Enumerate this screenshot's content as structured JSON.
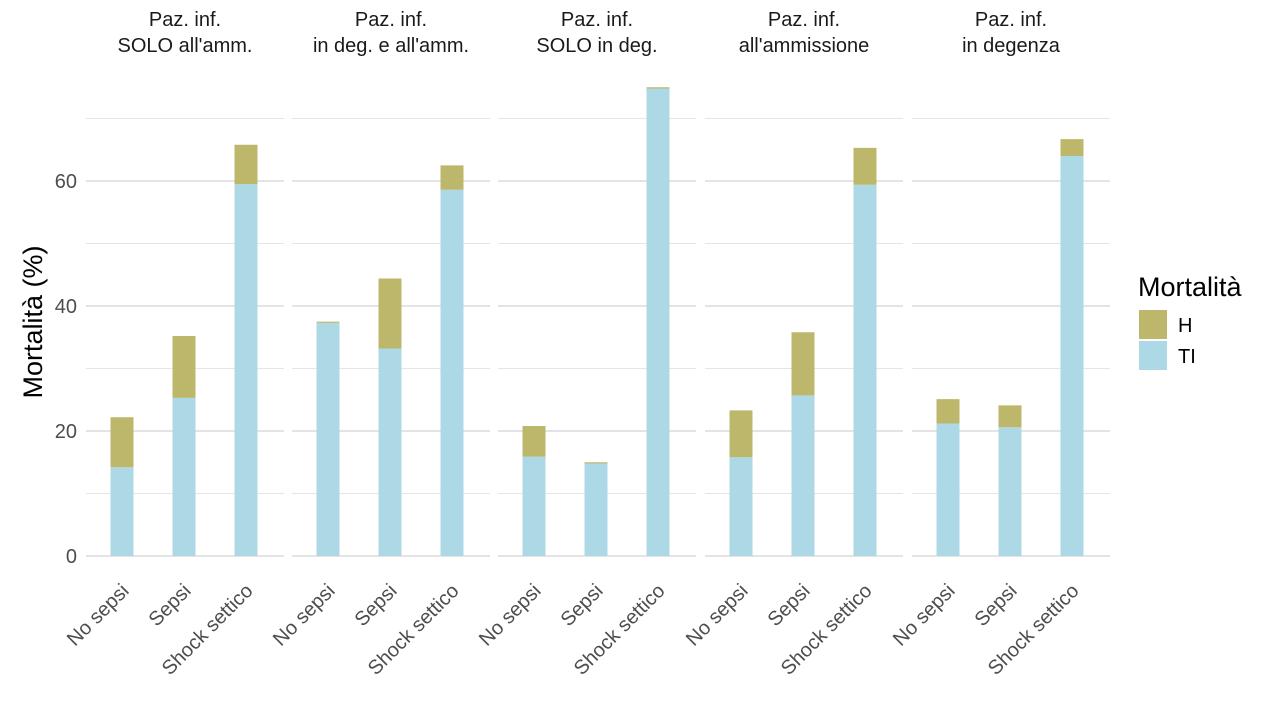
{
  "chart_data": {
    "type": "bar",
    "stacked": true,
    "ylabel": "Mortalità (%)",
    "ylim": [
      0,
      77
    ],
    "y_ticks": [
      0,
      20,
      40,
      60
    ],
    "grid": true,
    "categories": [
      "No sepsi",
      "Sepsi",
      "Shock settico"
    ],
    "legend": {
      "title": "Mortalità",
      "position": "right",
      "items": [
        {
          "label": "H",
          "color": "#BDB76B"
        },
        {
          "label": "TI",
          "color": "#ADD8E6"
        }
      ]
    },
    "panels": [
      {
        "title": [
          "Paz. inf.",
          "SOLO all'amm."
        ],
        "series": [
          {
            "name": "TI",
            "values": [
              14.2,
              25.3,
              59.5
            ]
          },
          {
            "name": "H",
            "values": [
              8.0,
              9.9,
              6.3
            ]
          }
        ]
      },
      {
        "title": [
          "Paz. inf.",
          "in deg. e all'amm."
        ],
        "series": [
          {
            "name": "TI",
            "values": [
              37.3,
              33.2,
              58.6
            ]
          },
          {
            "name": "H",
            "values": [
              0.2,
              11.2,
              3.9
            ]
          }
        ]
      },
      {
        "title": [
          "Paz. inf.",
          "SOLO in deg."
        ],
        "series": [
          {
            "name": "TI",
            "values": [
              15.9,
              14.8,
              74.8
            ]
          },
          {
            "name": "H",
            "values": [
              4.9,
              0.2,
              0.2
            ]
          }
        ]
      },
      {
        "title": [
          "Paz. inf.",
          "all'ammissione"
        ],
        "series": [
          {
            "name": "TI",
            "values": [
              15.8,
              25.7,
              59.4
            ]
          },
          {
            "name": "H",
            "values": [
              7.5,
              10.1,
              5.9
            ]
          }
        ]
      },
      {
        "title": [
          "Paz. inf.",
          "in degenza"
        ],
        "series": [
          {
            "name": "TI",
            "values": [
              21.2,
              20.6,
              64.0
            ]
          },
          {
            "name": "H",
            "values": [
              3.9,
              3.5,
              2.7
            ]
          }
        ]
      }
    ]
  }
}
